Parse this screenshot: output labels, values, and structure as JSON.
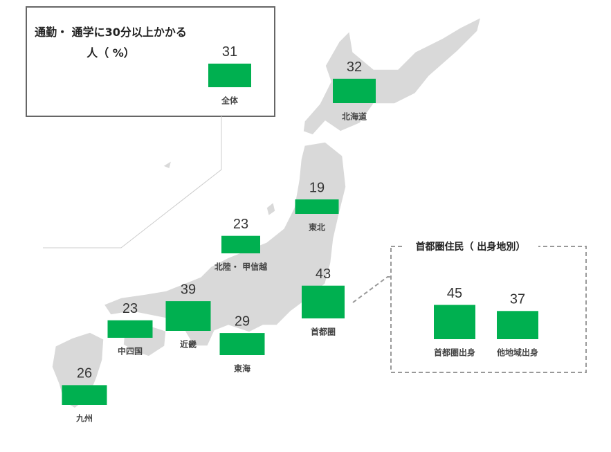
{
  "chart_data": [
    {
      "type": "bar",
      "title": "通勤・ 通学に30分以上かかる人（ %）",
      "categories": [
        "全体",
        "北海道",
        "東北",
        "北陸・ 甲信越",
        "首都圏",
        "近畿",
        "中四国",
        "東海",
        "九州"
      ],
      "values": [
        31,
        32,
        19,
        23,
        43,
        39,
        23,
        29,
        26
      ],
      "color": "#00b050"
    },
    {
      "type": "bar",
      "title": "首都圏住民（ 出身地別）",
      "categories": [
        "首都圏出身",
        "他地域出身"
      ],
      "values": [
        45,
        37
      ],
      "color": "#00b050"
    }
  ]
}
